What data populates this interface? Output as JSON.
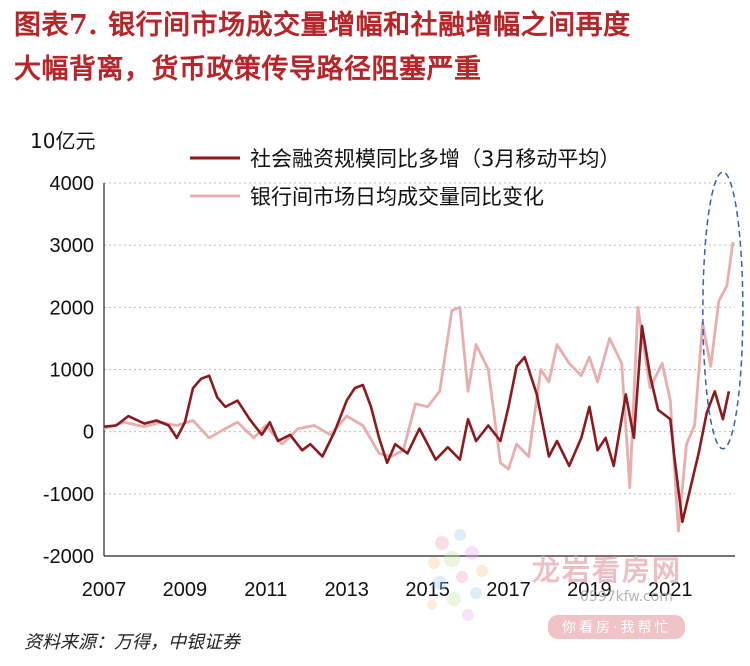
{
  "figure": {
    "title_line1": "图表7.  银行间市场成交量增幅和社融增幅之间再度",
    "title_line2": "大幅背离，货币政策传导路径阻塞严重",
    "source": "资料来源：万得，中银证券"
  },
  "watermark": {
    "brand": "龙岩看房网",
    "url": "0597kfw.com",
    "slogan": "你看房·我帮忙"
  },
  "colors": {
    "social_financing": "#8b1a1f",
    "interbank_volume": "#e8aeae",
    "title": "#b5252a",
    "highlight_ellipse": "#3a5fb0"
  },
  "chart_data": {
    "type": "line",
    "unit_label": "10亿元",
    "ylim": [
      -2000,
      4000
    ],
    "yticks": [
      "4000",
      "3000",
      "2000",
      "1000",
      "0",
      "-1000",
      "-2000"
    ],
    "xlim": [
      2007.0,
      2022.6
    ],
    "xticks": [
      "2007",
      "2009",
      "2011",
      "2013",
      "2015",
      "2017",
      "2019",
      "2021"
    ],
    "grid": "horizontal dashed",
    "legend_position": "top",
    "series": [
      {
        "name": "社会融资规模同比多增（3月移动平均）",
        "points": [
          [
            2007.0,
            80
          ],
          [
            2007.3,
            100
          ],
          [
            2007.6,
            250
          ],
          [
            2008.0,
            130
          ],
          [
            2008.3,
            180
          ],
          [
            2008.6,
            100
          ],
          [
            2008.8,
            -100
          ],
          [
            2009.0,
            150
          ],
          [
            2009.2,
            700
          ],
          [
            2009.4,
            850
          ],
          [
            2009.6,
            900
          ],
          [
            2009.8,
            550
          ],
          [
            2010.0,
            400
          ],
          [
            2010.3,
            500
          ],
          [
            2010.6,
            200
          ],
          [
            2010.9,
            -50
          ],
          [
            2011.1,
            150
          ],
          [
            2011.3,
            -150
          ],
          [
            2011.6,
            -50
          ],
          [
            2011.9,
            -300
          ],
          [
            2012.1,
            -200
          ],
          [
            2012.4,
            -400
          ],
          [
            2012.7,
            0
          ],
          [
            2013.0,
            500
          ],
          [
            2013.2,
            700
          ],
          [
            2013.4,
            750
          ],
          [
            2013.6,
            400
          ],
          [
            2013.8,
            -100
          ],
          [
            2014.0,
            -500
          ],
          [
            2014.2,
            -200
          ],
          [
            2014.5,
            -350
          ],
          [
            2014.8,
            50
          ],
          [
            2015.0,
            -200
          ],
          [
            2015.2,
            -450
          ],
          [
            2015.5,
            -250
          ],
          [
            2015.8,
            -450
          ],
          [
            2016.0,
            200
          ],
          [
            2016.2,
            -150
          ],
          [
            2016.5,
            100
          ],
          [
            2016.8,
            -150
          ],
          [
            2017.0,
            400
          ],
          [
            2017.2,
            1050
          ],
          [
            2017.4,
            1200
          ],
          [
            2017.7,
            600
          ],
          [
            2018.0,
            -400
          ],
          [
            2018.2,
            -150
          ],
          [
            2018.5,
            -550
          ],
          [
            2018.8,
            -100
          ],
          [
            2019.0,
            400
          ],
          [
            2019.2,
            -300
          ],
          [
            2019.4,
            -100
          ],
          [
            2019.6,
            -550
          ],
          [
            2019.9,
            600
          ],
          [
            2020.1,
            -100
          ],
          [
            2020.3,
            1700
          ],
          [
            2020.5,
            900
          ],
          [
            2020.7,
            350
          ],
          [
            2021.0,
            200
          ],
          [
            2021.1,
            -400
          ],
          [
            2021.3,
            -1450
          ],
          [
            2021.5,
            -900
          ],
          [
            2021.7,
            -350
          ],
          [
            2021.9,
            300
          ],
          [
            2022.1,
            650
          ],
          [
            2022.3,
            200
          ],
          [
            2022.45,
            650
          ]
        ]
      },
      {
        "name": "银行间市场日均成交量同比变化",
        "points": [
          [
            2007.0,
            50
          ],
          [
            2007.5,
            150
          ],
          [
            2008.0,
            80
          ],
          [
            2008.4,
            150
          ],
          [
            2008.8,
            100
          ],
          [
            2009.2,
            180
          ],
          [
            2009.6,
            -100
          ],
          [
            2010.0,
            50
          ],
          [
            2010.3,
            150
          ],
          [
            2010.7,
            -100
          ],
          [
            2011.0,
            100
          ],
          [
            2011.4,
            -200
          ],
          [
            2011.8,
            50
          ],
          [
            2012.2,
            100
          ],
          [
            2012.6,
            -50
          ],
          [
            2013.0,
            250
          ],
          [
            2013.4,
            100
          ],
          [
            2013.8,
            -350
          ],
          [
            2014.1,
            -400
          ],
          [
            2014.4,
            -300
          ],
          [
            2014.7,
            450
          ],
          [
            2015.0,
            400
          ],
          [
            2015.3,
            650
          ],
          [
            2015.6,
            1950
          ],
          [
            2015.8,
            2000
          ],
          [
            2016.0,
            650
          ],
          [
            2016.2,
            1400
          ],
          [
            2016.5,
            1000
          ],
          [
            2016.8,
            -500
          ],
          [
            2017.0,
            -600
          ],
          [
            2017.2,
            -200
          ],
          [
            2017.5,
            -400
          ],
          [
            2017.8,
            1000
          ],
          [
            2018.0,
            800
          ],
          [
            2018.2,
            1400
          ],
          [
            2018.5,
            1100
          ],
          [
            2018.8,
            900
          ],
          [
            2019.0,
            1200
          ],
          [
            2019.2,
            800
          ],
          [
            2019.5,
            1500
          ],
          [
            2019.8,
            1100
          ],
          [
            2020.0,
            -900
          ],
          [
            2020.2,
            2000
          ],
          [
            2020.5,
            700
          ],
          [
            2020.8,
            1100
          ],
          [
            2021.0,
            500
          ],
          [
            2021.2,
            -1600
          ],
          [
            2021.4,
            -200
          ],
          [
            2021.6,
            100
          ],
          [
            2021.8,
            1750
          ],
          [
            2022.0,
            1050
          ],
          [
            2022.2,
            2100
          ],
          [
            2022.4,
            2350
          ],
          [
            2022.55,
            3050
          ]
        ]
      }
    ]
  }
}
